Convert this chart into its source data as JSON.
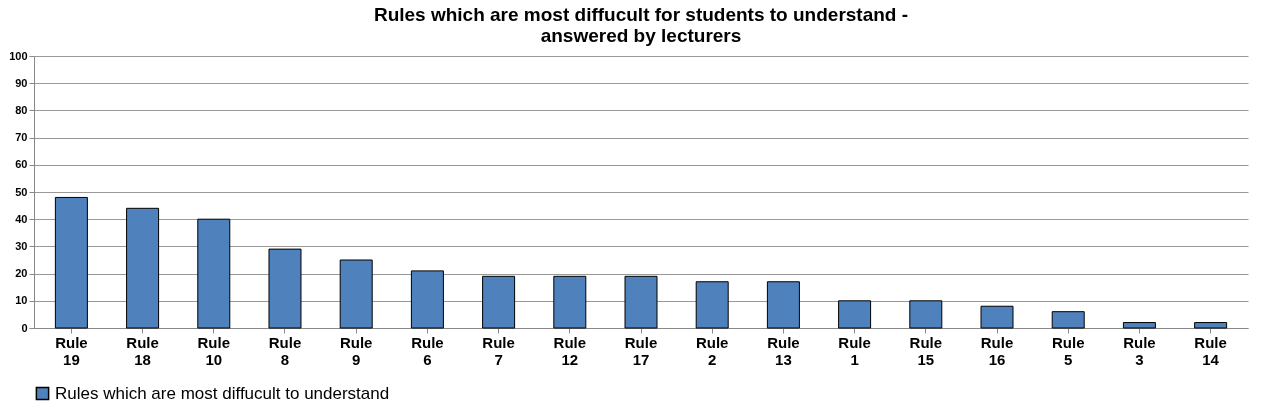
{
  "chart_data": {
    "type": "bar",
    "title": [
      "Rules which are most diffucult for students to understand -",
      "answered by lecturers"
    ],
    "categories": [
      "Rule 19",
      "Rule 18",
      "Rule 10",
      "Rule 8",
      "Rule 9",
      "Rule 6",
      "Rule 7",
      "Rule 12",
      "Rule 17",
      "Rule 2",
      "Rule 13",
      "Rule 1",
      "Rule 15",
      "Rule 16",
      "Rule 5",
      "Rule 3",
      "Rule 14"
    ],
    "series": [
      {
        "name": "Rules which are most diffucult to understand",
        "color": "#4f81bd",
        "values": [
          48,
          44,
          40,
          29,
          25,
          21,
          19,
          19,
          19,
          17,
          17,
          10,
          10,
          8,
          6,
          2,
          2
        ]
      }
    ],
    "ylim": [
      0,
      100
    ],
    "yticks": [
      0,
      10,
      20,
      30,
      40,
      50,
      60,
      70,
      80,
      90,
      100
    ],
    "grid": "y",
    "legend": "bottom"
  }
}
